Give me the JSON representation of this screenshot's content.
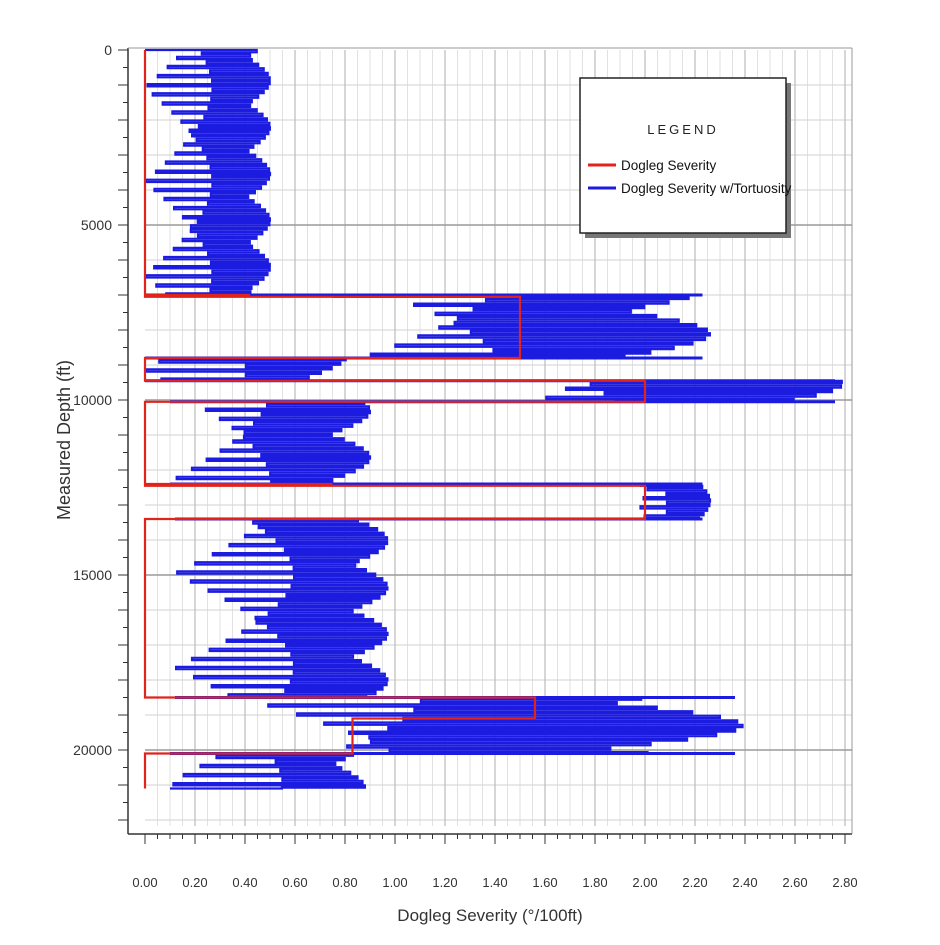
{
  "chart_data": {
    "type": "line",
    "title": "",
    "xlabel": "Dogleg Severity (°/100ft)",
    "ylabel": "Measured Depth (ft)",
    "xlim": [
      0,
      2.85
    ],
    "ylim": [
      0,
      22200
    ],
    "y_inverted": true,
    "grid": true,
    "x_ticks": [
      0,
      0.2,
      0.4,
      0.6,
      0.8,
      1.0,
      1.2,
      1.4,
      1.6,
      1.8,
      2.0,
      2.2,
      2.4,
      2.6,
      2.8
    ],
    "x_tick_labels": [
      "0.00",
      "0.20",
      "0.40",
      "0.60",
      "0.80",
      "1.00",
      "1.20",
      "1.40",
      "1.60",
      "1.80",
      "2.00",
      "2.20",
      "2.40",
      "2.60",
      "2.80"
    ],
    "y_ticks": [
      0,
      5000,
      10000,
      15000,
      20000
    ],
    "y_tick_labels": [
      "0",
      "5000",
      "10000",
      "15000",
      "20000"
    ],
    "legend": {
      "title": "LEGEND",
      "position": "top-right",
      "entries": [
        {
          "label": "Dogleg Severity",
          "color": "#e0241c"
        },
        {
          "label": "Dogleg Severity w/Tortuosity",
          "color": "#1c1ce0"
        }
      ]
    },
    "series": [
      {
        "name": "Dogleg Severity",
        "color": "#e0241c",
        "points": [
          [
            0.0,
            0
          ],
          [
            0.0,
            7000
          ],
          [
            0.42,
            7000
          ],
          [
            0.0,
            7000
          ],
          [
            0.0,
            7050
          ],
          [
            1.5,
            7050
          ],
          [
            1.5,
            8800
          ],
          [
            0.0,
            8800
          ],
          [
            0.47,
            8800
          ],
          [
            0.0,
            8800
          ],
          [
            0.0,
            9450
          ],
          [
            0.3,
            9450
          ],
          [
            0.0,
            9450
          ],
          [
            0.0,
            9450
          ],
          [
            2.0,
            9450
          ],
          [
            2.0,
            10050
          ],
          [
            0.0,
            10050
          ],
          [
            0.43,
            10050
          ],
          [
            0.0,
            10050
          ],
          [
            0.0,
            12400
          ],
          [
            0.75,
            12400
          ],
          [
            0.0,
            12400
          ],
          [
            0.0,
            12450
          ],
          [
            2.0,
            12450
          ],
          [
            2.0,
            13400
          ],
          [
            0.0,
            13400
          ],
          [
            0.0,
            18500
          ],
          [
            0.68,
            18500
          ],
          [
            0.0,
            18500
          ],
          [
            0.0,
            18500
          ],
          [
            1.56,
            18500
          ],
          [
            1.56,
            19100
          ],
          [
            0.83,
            19100
          ],
          [
            0.83,
            20100
          ],
          [
            0.0,
            20100
          ],
          [
            0.2,
            20100
          ],
          [
            0.0,
            20100
          ],
          [
            0.0,
            21100
          ]
        ]
      },
      {
        "name": "Dogleg Severity w/Tortuosity",
        "color": "#1c1ce0",
        "zones": [
          {
            "from": 0,
            "to": 7000,
            "lo": 0.0,
            "hi": 0.5,
            "mid": 0.3,
            "step": 130
          },
          {
            "from": 7050,
            "to": 8800,
            "lo": 0.75,
            "hi": 2.26,
            "mid": 1.5,
            "step": 130
          },
          {
            "from": 8800,
            "to": 9450,
            "lo": 0.0,
            "hi": 0.81,
            "mid": 0.45,
            "step": 130
          },
          {
            "from": 9450,
            "to": 10050,
            "lo": 1.32,
            "hi": 2.79,
            "mid": 2.0,
            "step": 130
          },
          {
            "from": 10050,
            "to": 12400,
            "lo": 0.1,
            "hi": 0.9,
            "mid": 0.55,
            "step": 130
          },
          {
            "from": 12450,
            "to": 13400,
            "lo": 1.98,
            "hi": 2.26,
            "mid": 2.1,
            "step": 130
          },
          {
            "from": 13400,
            "to": 18500,
            "lo": 0.12,
            "hi": 0.97,
            "mid": 0.65,
            "step": 130
          },
          {
            "from": 18500,
            "to": 20100,
            "lo": 0.32,
            "hi": 2.39,
            "mid": 1.2,
            "step": 130
          },
          {
            "from": 20100,
            "to": 21100,
            "lo": 0.1,
            "hi": 0.88,
            "mid": 0.6,
            "step": 130
          }
        ]
      }
    ]
  }
}
